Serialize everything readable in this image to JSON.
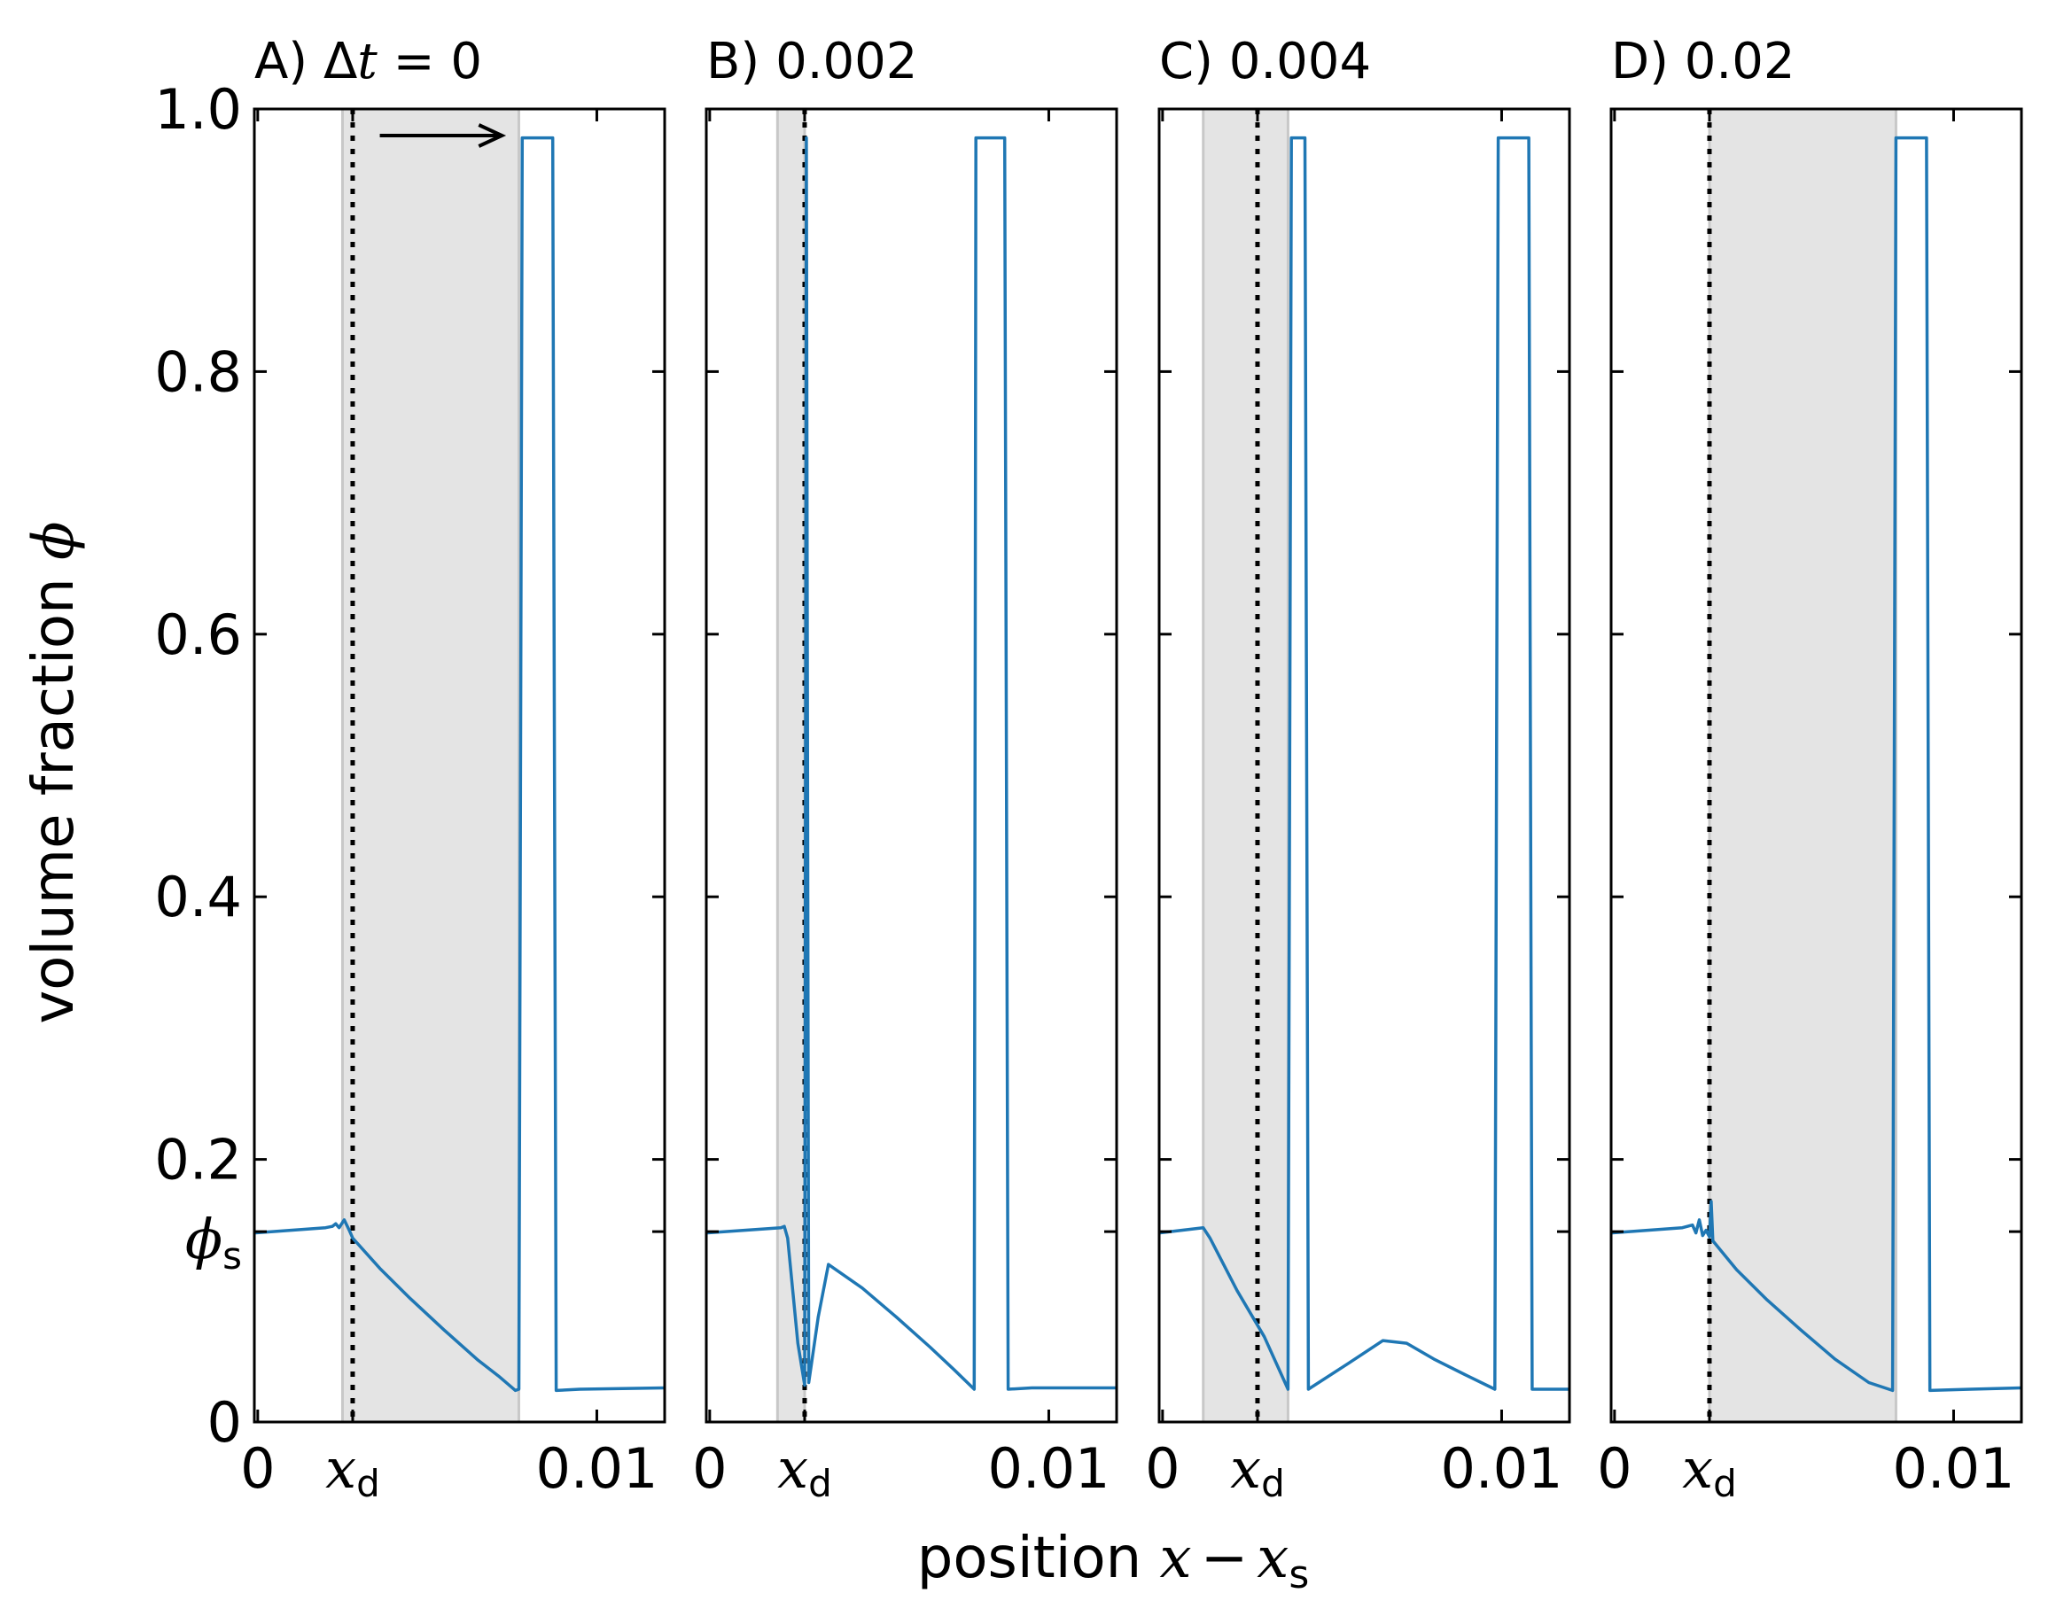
{
  "chart_data": {
    "type": "line",
    "ylabel": "volume fraction",
    "ylabel_symbol": "ϕ",
    "xlabel": "position",
    "xlabel_expr": {
      "var": "x",
      "op": "−",
      "ref": "x",
      "ref_sub": "s"
    },
    "ylim": [
      0,
      1.0
    ],
    "xlim": [
      -0.0001,
      0.012
    ],
    "y_ticks": [
      {
        "value": 0,
        "label": "0"
      },
      {
        "value": 0.2,
        "label": "0.2"
      },
      {
        "value": 0.4,
        "label": "0.4"
      },
      {
        "value": 0.6,
        "label": "0.6"
      },
      {
        "value": 0.8,
        "label": "0.8"
      },
      {
        "value": 1.0,
        "label": "1.0"
      }
    ],
    "phi_s": {
      "value": 0.145,
      "symbol": "ϕ",
      "sub": "s"
    },
    "x_ticks": [
      {
        "value": 0,
        "label": "0"
      },
      {
        "value": 0.0028,
        "label": "x",
        "sub": "d"
      },
      {
        "value": 0.01,
        "label": "0.01"
      }
    ],
    "line_color": "#1f77b4",
    "shade_color": "#e4e4e4",
    "panels": [
      {
        "label": "A)",
        "time": "0",
        "time_prefix": "Δ",
        "time_var": "t",
        "shade": [
          0.0025,
          0.0077
        ],
        "arrow": [
          0.0036,
          0.0072
        ],
        "points": [
          [
            -0.0001,
            0.144
          ],
          [
            0.002,
            0.148
          ],
          [
            0.0022,
            0.149
          ],
          [
            0.0023,
            0.151
          ],
          [
            0.0024,
            0.148
          ],
          [
            0.00255,
            0.154
          ],
          [
            0.0027,
            0.146
          ],
          [
            0.0028,
            0.14
          ],
          [
            0.0036,
            0.117
          ],
          [
            0.0045,
            0.094
          ],
          [
            0.0055,
            0.07
          ],
          [
            0.0065,
            0.047
          ],
          [
            0.0071,
            0.035
          ],
          [
            0.0076,
            0.024
          ],
          [
            0.0077,
            0.025
          ],
          [
            0.0078,
            0.978
          ],
          [
            0.0087,
            0.978
          ],
          [
            0.0088,
            0.024
          ],
          [
            0.0095,
            0.025
          ],
          [
            0.012,
            0.026
          ]
        ]
      },
      {
        "label": "B)",
        "time": "0.002",
        "shade": [
          0.002,
          0.0028
        ],
        "points": [
          [
            -0.0001,
            0.144
          ],
          [
            0.0021,
            0.148
          ],
          [
            0.0022,
            0.149
          ],
          [
            0.0023,
            0.14
          ],
          [
            0.0026,
            0.06
          ],
          [
            0.0028,
            0.028
          ],
          [
            0.00285,
            0.978
          ],
          [
            0.00292,
            0.03
          ],
          [
            0.0032,
            0.08
          ],
          [
            0.0035,
            0.12
          ],
          [
            0.0045,
            0.102
          ],
          [
            0.0055,
            0.08
          ],
          [
            0.0065,
            0.057
          ],
          [
            0.0072,
            0.04
          ],
          [
            0.0078,
            0.025
          ],
          [
            0.00785,
            0.978
          ],
          [
            0.0087,
            0.978
          ],
          [
            0.0088,
            0.025
          ],
          [
            0.0095,
            0.026
          ],
          [
            0.012,
            0.026
          ]
        ]
      },
      {
        "label": "C)",
        "time": "0.004",
        "shade": [
          0.0012,
          0.0037
        ],
        "points": [
          [
            -0.0001,
            0.144
          ],
          [
            0.0012,
            0.148
          ],
          [
            0.0014,
            0.14
          ],
          [
            0.0022,
            0.1
          ],
          [
            0.003,
            0.065
          ],
          [
            0.0037,
            0.025
          ],
          [
            0.0038,
            0.978
          ],
          [
            0.0042,
            0.978
          ],
          [
            0.0043,
            0.025
          ],
          [
            0.0055,
            0.045
          ],
          [
            0.0065,
            0.062
          ],
          [
            0.0072,
            0.06
          ],
          [
            0.008,
            0.048
          ],
          [
            0.009,
            0.035
          ],
          [
            0.0098,
            0.025
          ],
          [
            0.0099,
            0.978
          ],
          [
            0.0108,
            0.978
          ],
          [
            0.0109,
            0.025
          ],
          [
            0.012,
            0.025
          ]
        ]
      },
      {
        "label": "D)",
        "time": "0.02",
        "shade": [
          0.0028,
          0.0083
        ],
        "points": [
          [
            -0.0001,
            0.144
          ],
          [
            0.002,
            0.148
          ],
          [
            0.0023,
            0.15
          ],
          [
            0.0024,
            0.144
          ],
          [
            0.0025,
            0.154
          ],
          [
            0.0026,
            0.142
          ],
          [
            0.0027,
            0.146
          ],
          [
            0.0028,
            0.141
          ],
          [
            0.00285,
            0.168
          ],
          [
            0.0029,
            0.138
          ],
          [
            0.0036,
            0.116
          ],
          [
            0.0045,
            0.093
          ],
          [
            0.0055,
            0.07
          ],
          [
            0.0065,
            0.048
          ],
          [
            0.0075,
            0.03
          ],
          [
            0.0082,
            0.024
          ],
          [
            0.0083,
            0.978
          ],
          [
            0.0092,
            0.978
          ],
          [
            0.0093,
            0.024
          ],
          [
            0.0105,
            0.025
          ],
          [
            0.012,
            0.026
          ]
        ]
      }
    ]
  }
}
